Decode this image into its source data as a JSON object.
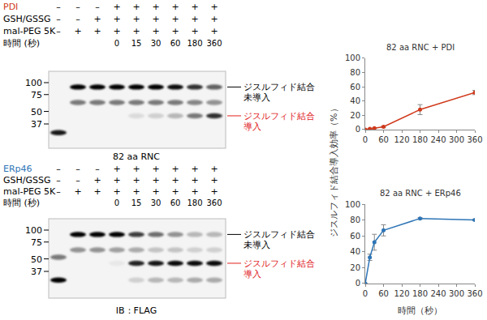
{
  "chart_data": [
    {
      "type": "line",
      "title": "82 aa RNC + PDI",
      "x": [
        0,
        15,
        30,
        60,
        180,
        360
      ],
      "values": [
        0,
        1,
        2,
        4,
        28,
        52
      ],
      "errors": [
        0,
        0.5,
        0.5,
        1,
        7,
        3
      ],
      "color": "#d03a1c",
      "marker": "circle",
      "xlim": [
        0,
        360
      ],
      "xticks": [
        0,
        60,
        120,
        180,
        240,
        300,
        360
      ],
      "ylim": [
        0,
        100
      ],
      "yticks": [
        0,
        20,
        40,
        60,
        80,
        100
      ],
      "y_label": "ジスルフィド結合導入効率（%）",
      "grid": false
    },
    {
      "type": "line",
      "title": "82 aa RNC + ERp46",
      "x": [
        0,
        15,
        30,
        60,
        180,
        360
      ],
      "values": [
        0,
        33,
        52,
        67,
        82,
        80
      ],
      "errors": [
        0,
        4,
        10,
        7,
        1,
        1
      ],
      "color": "#2e75b6",
      "marker": "circle",
      "xlim": [
        0,
        360
      ],
      "xticks": [
        0,
        60,
        120,
        180,
        240,
        300,
        360
      ],
      "ylim": [
        0,
        100
      ],
      "yticks": [
        0,
        20,
        40,
        60,
        80,
        100
      ],
      "x_label": "時間（秒）",
      "grid": false
    }
  ],
  "blots": [
    {
      "rows": [
        {
          "label": "PDI",
          "color": "#d03a1c",
          "values": [
            "–",
            "–",
            "–",
            "+",
            "+",
            "+",
            "+",
            "+",
            "+"
          ]
        },
        {
          "label": "GSH/GSSG",
          "values": [
            "–",
            "–",
            "+",
            "+",
            "+",
            "+",
            "+",
            "+",
            "+"
          ]
        },
        {
          "label": "mal-PEG 5K",
          "values": [
            "–",
            "+",
            "+",
            "+",
            "+",
            "+",
            "+",
            "+",
            "+"
          ]
        }
      ],
      "time_label": "時間 (秒)",
      "times": [
        null,
        null,
        null,
        0,
        15,
        30,
        60,
        180,
        360
      ],
      "markers": [
        100,
        75,
        50,
        37
      ],
      "bands": [
        {
          "kda": 90,
          "intensity": [
            0,
            1,
            1,
            1,
            1,
            1,
            0.95,
            0.8,
            0.6
          ]
        },
        {
          "kda": 62,
          "intensity": [
            0,
            0.5,
            0.5,
            0.5,
            0.5,
            0.5,
            0.5,
            0.45,
            0.4
          ]
        },
        {
          "kda": 45,
          "intensity": [
            0,
            0,
            0,
            0,
            0.1,
            0.15,
            0.25,
            0.5,
            0.8
          ]
        },
        {
          "kda": 30,
          "intensity": [
            0.9,
            0,
            0,
            0,
            0,
            0,
            0,
            0,
            0
          ]
        }
      ],
      "labels": [
        {
          "lines": [
            "ジスルフィド結合",
            "未導入"
          ],
          "kda": 90,
          "color": "#000000"
        },
        {
          "lines": [
            "ジスルフィド結合",
            "導入"
          ],
          "kda": 45,
          "color": "#e0201b"
        }
      ]
    },
    {
      "title": "82 aa RNC",
      "rows": [
        {
          "label": "ERp46",
          "color": "#2e75b6",
          "values": [
            "–",
            "–",
            "–",
            "+",
            "+",
            "+",
            "+",
            "+",
            "+"
          ]
        },
        {
          "label": "GSH/GSSG",
          "values": [
            "–",
            "–",
            "+",
            "+",
            "+",
            "+",
            "+",
            "+",
            "+"
          ]
        },
        {
          "label": "mal-PEG 5K",
          "values": [
            "–",
            "+",
            "+",
            "+",
            "+",
            "+",
            "+",
            "+",
            "+"
          ]
        }
      ],
      "time_label": "時間 (秒)",
      "times": [
        null,
        null,
        null,
        0,
        15,
        30,
        60,
        180,
        360
      ],
      "markers": [
        100,
        75,
        50,
        37
      ],
      "bands": [
        {
          "kda": 90,
          "intensity": [
            0,
            1,
            1,
            1,
            0.75,
            0.55,
            0.4,
            0.25,
            0.25
          ]
        },
        {
          "kda": 62,
          "intensity": [
            0,
            0.4,
            0.4,
            0.35,
            0.3,
            0.2,
            0.2,
            0.15,
            0.15
          ]
        },
        {
          "kda": 52,
          "intensity": [
            0.5,
            0,
            0,
            0,
            0,
            0,
            0,
            0,
            0
          ]
        },
        {
          "kda": 45,
          "intensity": [
            0,
            0,
            0,
            0.05,
            0.85,
            0.9,
            0.95,
            0.95,
            0.95
          ]
        },
        {
          "kda": 30,
          "intensity": [
            1,
            0,
            0,
            0,
            0.15,
            0.25,
            0.25,
            0.3,
            0.3
          ]
        }
      ],
      "labels": [
        {
          "lines": [
            "ジスルフィド結合",
            "未導入"
          ],
          "kda": 90,
          "color": "#000000"
        },
        {
          "lines": [
            "ジスルフィド結合",
            "導入"
          ],
          "kda": 45,
          "color": "#e0201b"
        }
      ]
    }
  ],
  "footer": "IB：FLAG"
}
